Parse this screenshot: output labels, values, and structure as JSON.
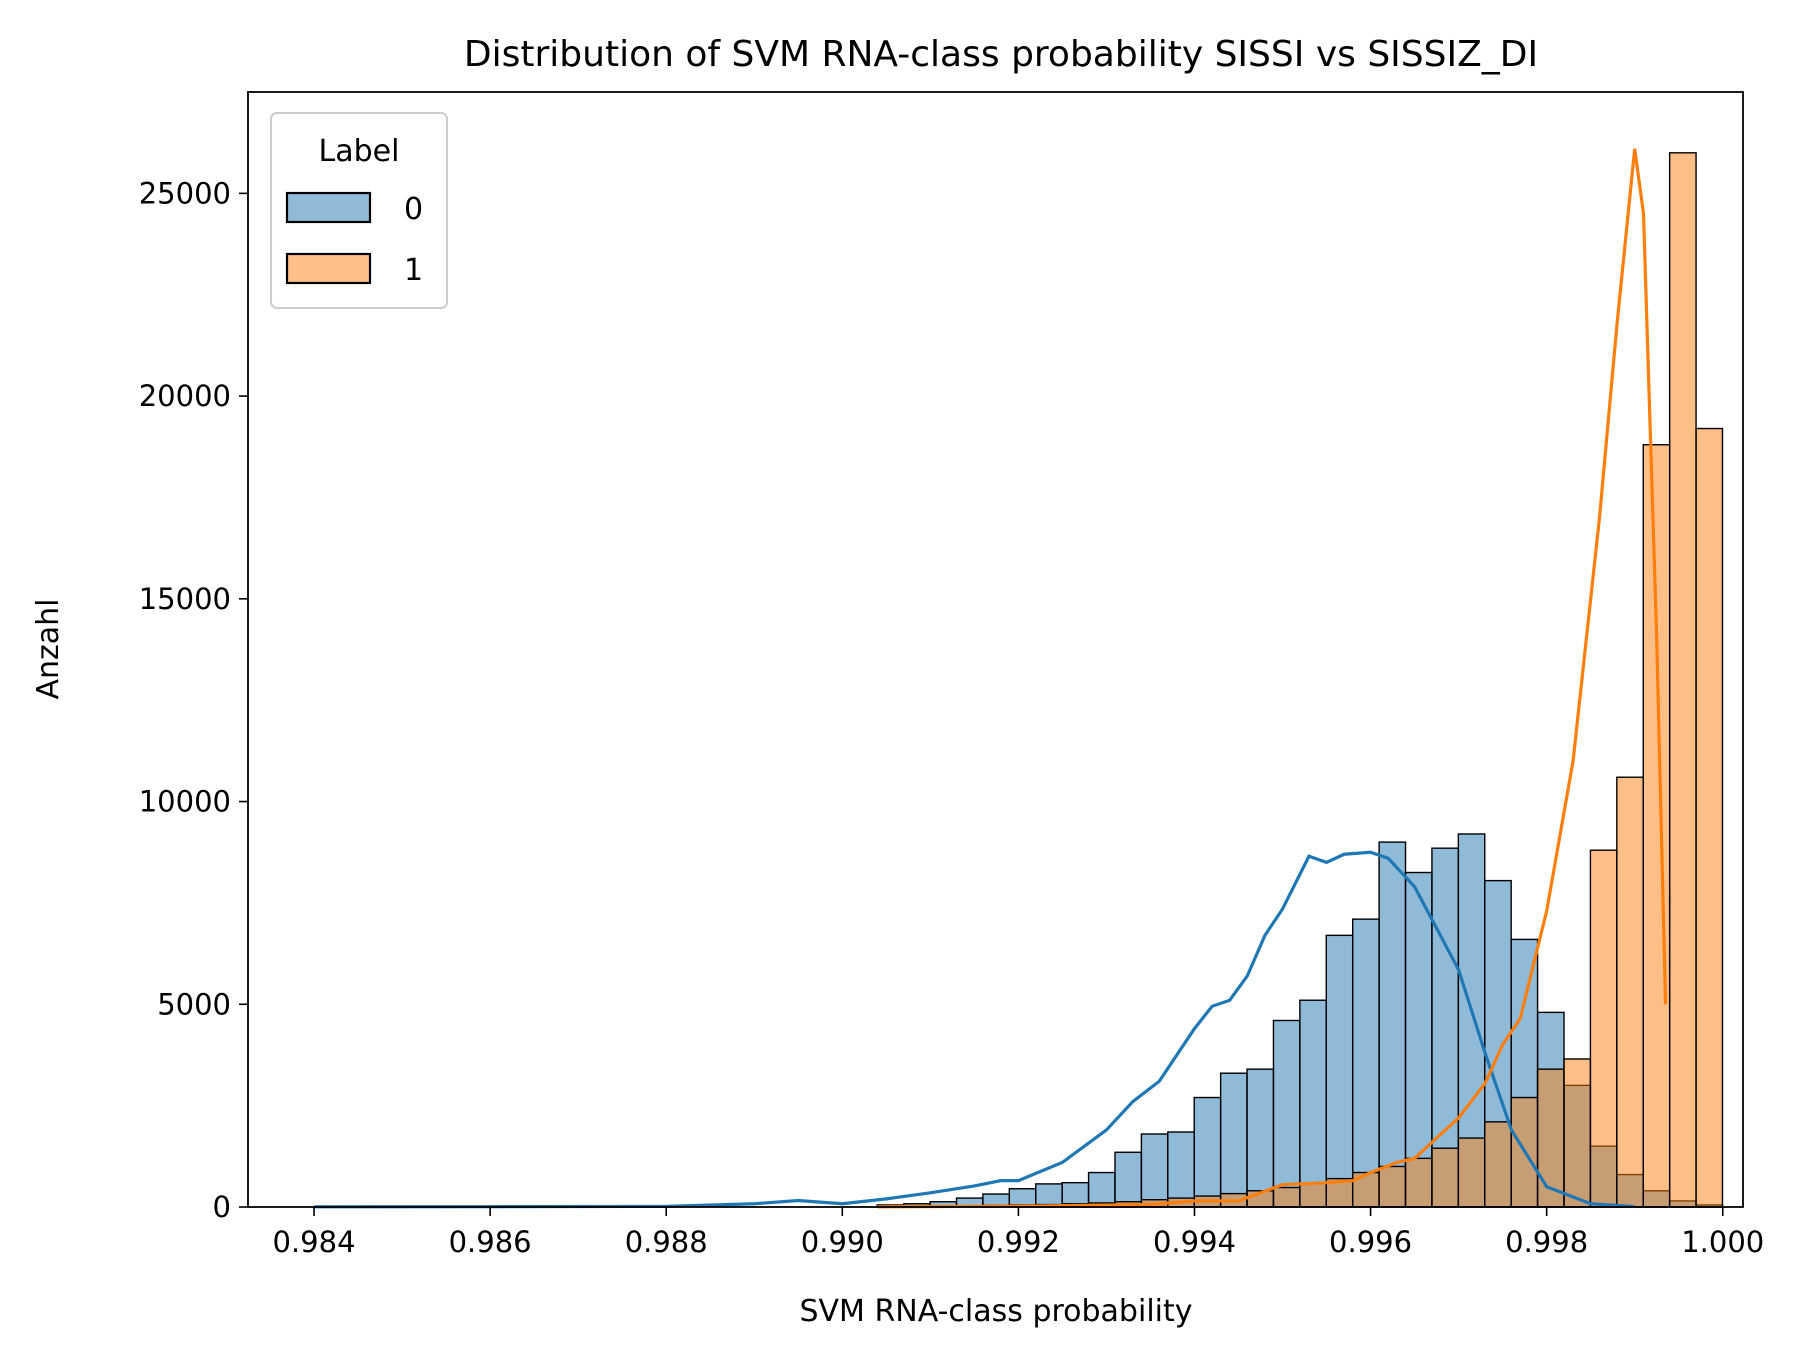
{
  "chart_data": {
    "type": "histogram",
    "title": "Distribution of SVM RNA-class probability SISSI vs SISSIZ_DI",
    "xlabel": "SVM RNA-class probability",
    "ylabel": "Anzahl",
    "xlim": [
      0.98325,
      1.00023
    ],
    "ylim": [
      0,
      27500
    ],
    "x_ticks": [
      0.984,
      0.986,
      0.988,
      0.99,
      0.992,
      0.994,
      0.996,
      0.998,
      1.0
    ],
    "x_tick_labels": [
      "0.984",
      "0.986",
      "0.988",
      "0.990",
      "0.992",
      "0.994",
      "0.996",
      "0.998",
      "1.000"
    ],
    "y_ticks": [
      0,
      5000,
      10000,
      15000,
      20000,
      25000
    ],
    "y_tick_labels": [
      "0",
      "5000",
      "10000",
      "15000",
      "20000",
      "25000"
    ],
    "grid": false,
    "legend": {
      "title": "Label",
      "placement": "top-left",
      "entries": [
        {
          "label": "0",
          "color": "#1f77b4"
        },
        {
          "label": "1",
          "color": "#ff7f0e"
        }
      ]
    },
    "bins": {
      "start": 0.990397,
      "width": 0.0003,
      "count": 32
    },
    "series": [
      {
        "name": "0",
        "color": "#1f77b4",
        "fill": "rgba(31,119,180,0.5)",
        "counts": [
          50,
          80,
          130,
          220,
          320,
          450,
          570,
          600,
          850,
          1350,
          1800,
          1850,
          2700,
          3300,
          3400,
          4600,
          5100,
          6700,
          7100,
          9000,
          8250,
          8850,
          9200,
          8050,
          6600,
          4800,
          3000,
          1500,
          800,
          400,
          150,
          50
        ],
        "kde": [
          [
            0.984,
            5
          ],
          [
            0.986,
            8
          ],
          [
            0.988,
            15
          ],
          [
            0.989,
            80
          ],
          [
            0.9895,
            160
          ],
          [
            0.99,
            80
          ],
          [
            0.9905,
            200
          ],
          [
            0.991,
            350
          ],
          [
            0.9915,
            520
          ],
          [
            0.9918,
            650
          ],
          [
            0.992,
            650
          ],
          [
            0.9925,
            1100
          ],
          [
            0.993,
            1900
          ],
          [
            0.9933,
            2600
          ],
          [
            0.9936,
            3100
          ],
          [
            0.994,
            4400
          ],
          [
            0.9942,
            4950
          ],
          [
            0.9944,
            5100
          ],
          [
            0.9946,
            5700
          ],
          [
            0.9948,
            6700
          ],
          [
            0.995,
            7350
          ],
          [
            0.9953,
            8650
          ],
          [
            0.9955,
            8500
          ],
          [
            0.9957,
            8700
          ],
          [
            0.996,
            8750
          ],
          [
            0.9962,
            8600
          ],
          [
            0.9965,
            7900
          ],
          [
            0.997,
            5850
          ],
          [
            0.9973,
            3800
          ],
          [
            0.9976,
            1900
          ],
          [
            0.998,
            500
          ],
          [
            0.9985,
            80
          ],
          [
            0.999,
            10
          ]
        ]
      },
      {
        "name": "1",
        "color": "#ff7f0e",
        "fill": "rgba(255,127,14,0.5)",
        "counts": [
          10,
          20,
          20,
          30,
          40,
          50,
          60,
          80,
          100,
          130,
          180,
          220,
          270,
          330,
          400,
          480,
          580,
          700,
          850,
          1000,
          1200,
          1450,
          1700,
          2100,
          2700,
          3400,
          3650,
          8800,
          10600,
          18800,
          26000,
          19200
        ],
        "kde": [
          [
            0.9904,
            5
          ],
          [
            0.992,
            20
          ],
          [
            0.9935,
            60
          ],
          [
            0.994,
            150
          ],
          [
            0.9945,
            150
          ],
          [
            0.995,
            550
          ],
          [
            0.9955,
            600
          ],
          [
            0.9958,
            650
          ],
          [
            0.996,
            850
          ],
          [
            0.9963,
            1100
          ],
          [
            0.9965,
            1200
          ],
          [
            0.997,
            2200
          ],
          [
            0.9973,
            3050
          ],
          [
            0.9975,
            4000
          ],
          [
            0.9977,
            4650
          ],
          [
            0.998,
            7300
          ],
          [
            0.9983,
            11000
          ],
          [
            0.9986,
            17000
          ],
          [
            0.9988,
            21800
          ],
          [
            0.999,
            26100
          ],
          [
            0.9991,
            24500
          ],
          [
            0.99925,
            14000
          ],
          [
            0.99935,
            5000
          ]
        ]
      }
    ]
  }
}
